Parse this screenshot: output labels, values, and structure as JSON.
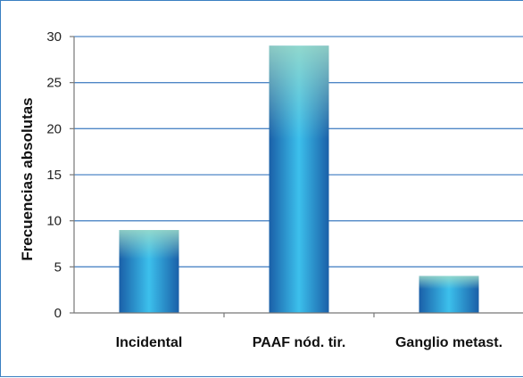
{
  "chart_data": {
    "type": "bar",
    "categories": [
      "Incidental",
      "PAAF nód. tir.",
      "Ganglio metast."
    ],
    "values": [
      9,
      29,
      4
    ],
    "ylabel": "Frecuencias absolutas",
    "ylim": [
      0,
      30
    ],
    "yticks": [
      0,
      5,
      10,
      15,
      20,
      25,
      30
    ],
    "grid": true,
    "colors": {
      "bar_dark": "#1a5fa8",
      "bar_mid": "#3cc0ec",
      "bar_top": "#9fdcc8",
      "grid": "#4f87c6"
    }
  }
}
